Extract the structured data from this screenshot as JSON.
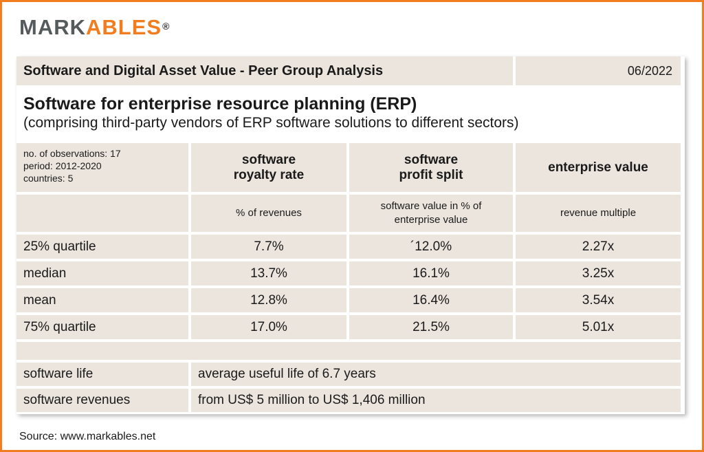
{
  "brand": {
    "part1": "MARK",
    "part2": "ABLES",
    "mark": "®",
    "colors": {
      "accent": "#f07d1f",
      "grey": "#555a5c",
      "cell_bg": "#ece5de"
    }
  },
  "header": {
    "title": "Software and Digital Asset Value - Peer Group Analysis",
    "date": "06/2022"
  },
  "section": {
    "title": "Software for enterprise resource planning (ERP)",
    "subtitle": "(comprising third-party vendors of ERP software solutions to different sectors)"
  },
  "meta": {
    "observations": "no. of observations: 17",
    "period": "period: 2012-2020",
    "countries": "countries: 5"
  },
  "columns": [
    {
      "line1": "software",
      "line2": "royalty rate",
      "unit": "% of revenues"
    },
    {
      "line1": "software",
      "line2": "profit split",
      "unit": "software value in % of enterprise value"
    },
    {
      "line1": "enterprise value",
      "line2": "",
      "unit": "revenue multiple"
    }
  ],
  "rows": [
    {
      "label": "25% quartile",
      "values": [
        "7.7%",
        "´12.0%",
        "2.27x"
      ]
    },
    {
      "label": "median",
      "values": [
        "13.7%",
        "16.1%",
        "3.25x"
      ]
    },
    {
      "label": "mean",
      "values": [
        "12.8%",
        "16.4%",
        "3.54x"
      ]
    },
    {
      "label": "75% quartile",
      "values": [
        "17.0%",
        "21.5%",
        "5.01x"
      ]
    }
  ],
  "details": [
    {
      "label": "software life",
      "value": "average useful life of 6.7 years"
    },
    {
      "label": "software revenues",
      "value": "from US$ 5 million to US$ 1,406 million"
    }
  ],
  "source": "Source: www.markables.net"
}
